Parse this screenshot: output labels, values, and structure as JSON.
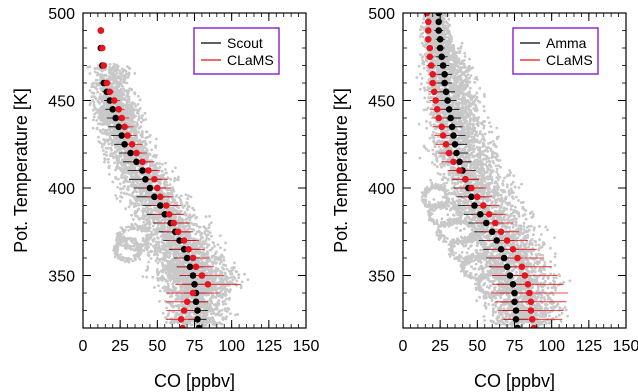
{
  "colors": {
    "scout": "#000000",
    "clams": "#e8141e",
    "cloud": "#c8c8c8",
    "legend_border": "#8e2bd6",
    "axes": "#000000"
  },
  "chart_data": [
    {
      "type": "scatter",
      "xlabel": "CO [ppbv]",
      "ylabel": "Pot. Temperature [K]",
      "xlim": [
        0,
        150
      ],
      "ylim": [
        320,
        500
      ],
      "xticks": [
        "0",
        "25",
        "50",
        "75",
        "100",
        "125",
        "150"
      ],
      "yticks": [
        "350",
        "400",
        "450",
        "500"
      ],
      "legend_position": "top-right",
      "series": [
        {
          "name": "Scout",
          "color": "#000000",
          "theta": [
            320,
            325,
            330,
            335,
            340,
            345,
            350,
            355,
            360,
            365,
            370,
            375,
            380,
            385,
            390,
            395,
            400,
            405,
            410,
            415,
            420,
            425,
            430,
            435,
            440,
            445,
            450,
            455,
            460,
            470,
            480,
            490
          ],
          "values": [
            78,
            77,
            77,
            76,
            76,
            75,
            74,
            72,
            70,
            68,
            65,
            62,
            59,
            55,
            52,
            48,
            45,
            42,
            40,
            36,
            32,
            28,
            26,
            24,
            22,
            20,
            18,
            16,
            14,
            13,
            12,
            12
          ],
          "spread": [
            6,
            6,
            7,
            8,
            8,
            8,
            9,
            9,
            9,
            10,
            11,
            11,
            12,
            12,
            12,
            12,
            11,
            11,
            10,
            9,
            8,
            7,
            7,
            7,
            6,
            5,
            4,
            3,
            3,
            2,
            2,
            2
          ]
        },
        {
          "name": "CLaMS",
          "color": "#e8141e",
          "theta": [
            320,
            325,
            330,
            335,
            340,
            345,
            350,
            355,
            360,
            365,
            370,
            375,
            380,
            385,
            390,
            395,
            400,
            405,
            410,
            415,
            420,
            425,
            430,
            435,
            440,
            445,
            450,
            455,
            460,
            470,
            480,
            490
          ],
          "values": [
            67,
            66,
            68,
            70,
            74,
            84,
            80,
            76,
            74,
            71,
            68,
            64,
            61,
            58,
            56,
            52,
            50,
            48,
            44,
            40,
            36,
            33,
            30,
            28,
            26,
            24,
            21,
            18,
            16,
            14,
            13,
            12
          ],
          "spread": [
            8,
            10,
            12,
            14,
            18,
            22,
            15,
            12,
            11,
            11,
            10,
            10,
            11,
            10,
            10,
            9,
            9,
            9,
            8,
            8,
            7,
            7,
            6,
            6,
            5,
            4,
            4,
            3,
            3,
            2,
            2,
            2
          ]
        }
      ],
      "cloud": [
        [
          470,
          18,
          16
        ],
        [
          455,
          20,
          18
        ],
        [
          445,
          22,
          18
        ],
        [
          440,
          24,
          20
        ],
        [
          430,
          27,
          20
        ],
        [
          420,
          31,
          22
        ],
        [
          410,
          38,
          24
        ],
        [
          400,
          44,
          26
        ],
        [
          390,
          52,
          28
        ],
        [
          380,
          58,
          30
        ],
        [
          370,
          64,
          32
        ],
        [
          362,
          68,
          34
        ],
        [
          355,
          72,
          34
        ],
        [
          350,
          74,
          34
        ],
        [
          345,
          78,
          34
        ],
        [
          340,
          78,
          30
        ],
        [
          330,
          78,
          28
        ],
        [
          322,
          76,
          26
        ]
      ],
      "loops": [
        [
          365,
          30,
          8
        ],
        [
          372,
          34,
          10
        ]
      ]
    },
    {
      "type": "scatter",
      "xlabel": "CO [ppbv]",
      "ylabel": "Pot. Temperature [K]",
      "xlim": [
        0,
        150
      ],
      "ylim": [
        320,
        500
      ],
      "xticks": [
        "0",
        "25",
        "50",
        "75",
        "100",
        "125",
        "150"
      ],
      "yticks": [
        "350",
        "400",
        "450",
        "500"
      ],
      "legend_position": "top-right",
      "series": [
        {
          "name": "Amma",
          "color": "#000000",
          "theta": [
            320,
            325,
            330,
            335,
            340,
            345,
            350,
            355,
            360,
            365,
            370,
            375,
            380,
            385,
            390,
            395,
            400,
            405,
            410,
            415,
            420,
            425,
            430,
            435,
            440,
            445,
            450,
            455,
            460,
            465,
            470,
            475,
            480,
            485,
            490,
            495,
            500
          ],
          "values": [
            77,
            76,
            76,
            75,
            75,
            74,
            72,
            70,
            68,
            66,
            63,
            60,
            56,
            52,
            48,
            46,
            44,
            42,
            40,
            38,
            36,
            35,
            34,
            33,
            32,
            31,
            30,
            29,
            28,
            28,
            27,
            26,
            25,
            25,
            24,
            24,
            24
          ],
          "spread": [
            8,
            8,
            9,
            10,
            10,
            11,
            12,
            12,
            12,
            12,
            12,
            12,
            12,
            11,
            11,
            10,
            10,
            9,
            9,
            8,
            8,
            8,
            8,
            7,
            7,
            7,
            6,
            6,
            5,
            5,
            4,
            4,
            3,
            3,
            3,
            2,
            2
          ]
        },
        {
          "name": "CLaMS",
          "color": "#e8141e",
          "theta": [
            320,
            325,
            330,
            335,
            340,
            345,
            350,
            355,
            360,
            365,
            370,
            375,
            380,
            385,
            390,
            395,
            400,
            405,
            410,
            415,
            420,
            425,
            430,
            435,
            440,
            445,
            450,
            455,
            460,
            465,
            470,
            475,
            480,
            485,
            490,
            495,
            500
          ],
          "values": [
            88,
            87,
            86,
            86,
            85,
            84,
            82,
            80,
            77,
            74,
            70,
            66,
            62,
            58,
            54,
            50,
            46,
            42,
            38,
            34,
            31,
            29,
            27,
            26,
            24,
            23,
            22,
            21,
            20,
            20,
            19,
            18,
            18,
            17,
            17,
            17,
            16
          ],
          "spread": [
            16,
            20,
            22,
            24,
            26,
            24,
            22,
            20,
            18,
            16,
            14,
            12,
            12,
            11,
            11,
            10,
            10,
            9,
            8,
            8,
            7,
            7,
            6,
            6,
            5,
            5,
            4,
            4,
            3,
            3,
            3,
            3,
            2,
            2,
            2,
            2,
            2
          ]
        }
      ],
      "cloud": [
        [
          500,
          22,
          10
        ],
        [
          490,
          22,
          12
        ],
        [
          480,
          26,
          16
        ],
        [
          470,
          30,
          20
        ],
        [
          460,
          32,
          22
        ],
        [
          450,
          34,
          24
        ],
        [
          440,
          36,
          24
        ],
        [
          430,
          38,
          26
        ],
        [
          420,
          40,
          28
        ],
        [
          410,
          46,
          30
        ],
        [
          400,
          50,
          32
        ],
        [
          390,
          56,
          34
        ],
        [
          380,
          62,
          34
        ],
        [
          370,
          68,
          34
        ],
        [
          360,
          72,
          34
        ],
        [
          350,
          78,
          34
        ],
        [
          340,
          80,
          32
        ],
        [
          330,
          82,
          30
        ],
        [
          322,
          82,
          28
        ]
      ],
      "loops": [
        [
          395,
          22,
          8
        ],
        [
          385,
          28,
          10
        ],
        [
          375,
          36,
          12
        ],
        [
          365,
          44,
          12
        ],
        [
          355,
          52,
          12
        ],
        [
          345,
          60,
          10
        ]
      ]
    }
  ]
}
